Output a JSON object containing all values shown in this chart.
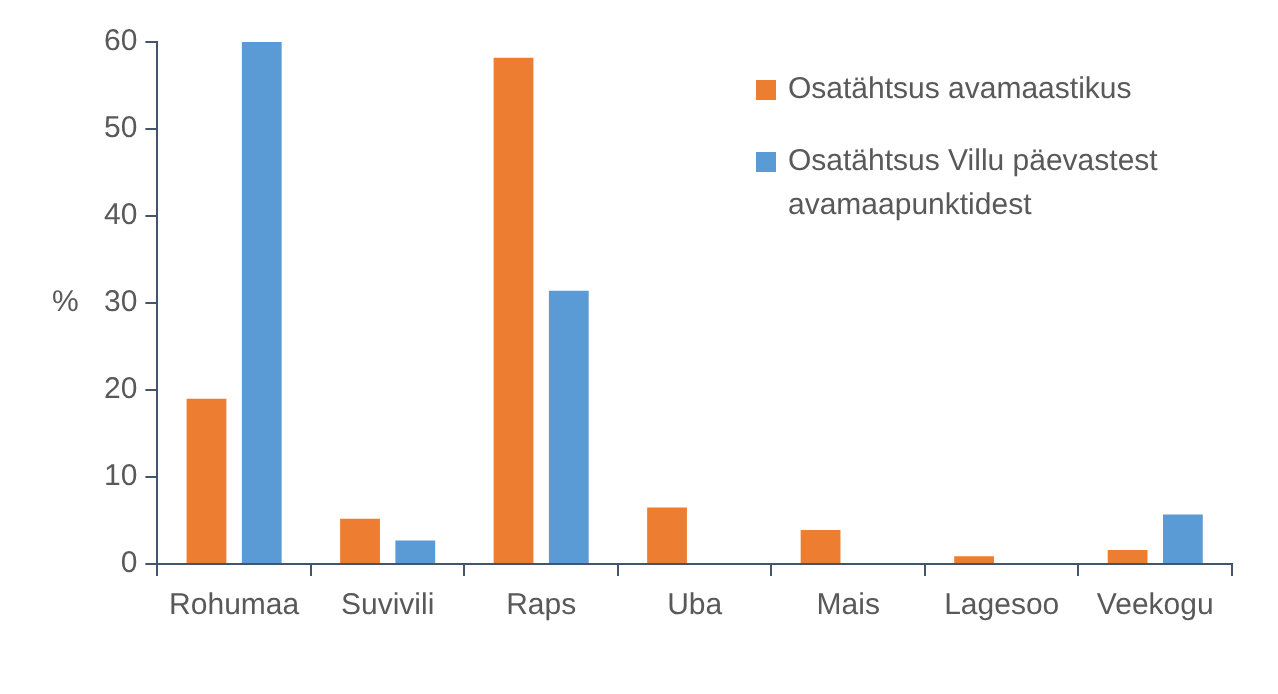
{
  "chart_data": {
    "type": "bar",
    "ylabel": "%",
    "categories": [
      "Rohumaa",
      "Suvivili",
      "Raps",
      "Uba",
      "Mais",
      "Lagesoo",
      "Veekogu"
    ],
    "series": [
      {
        "name": "Osatähtsus avamaastikus",
        "color": "#ed7d31",
        "values": [
          19,
          5.2,
          58.2,
          6.5,
          3.9,
          0.9,
          1.6
        ]
      },
      {
        "name": "Osatähtsus Villu päevastest avamaapunktidest",
        "color": "#5b9bd5",
        "values": [
          60,
          2.7,
          31.4,
          0,
          0,
          0,
          5.7
        ]
      }
    ],
    "ylim": [
      0,
      60
    ],
    "yticks": [
      0,
      10,
      20,
      30,
      40,
      50,
      60
    ],
    "grid": false,
    "legend": "top right"
  }
}
